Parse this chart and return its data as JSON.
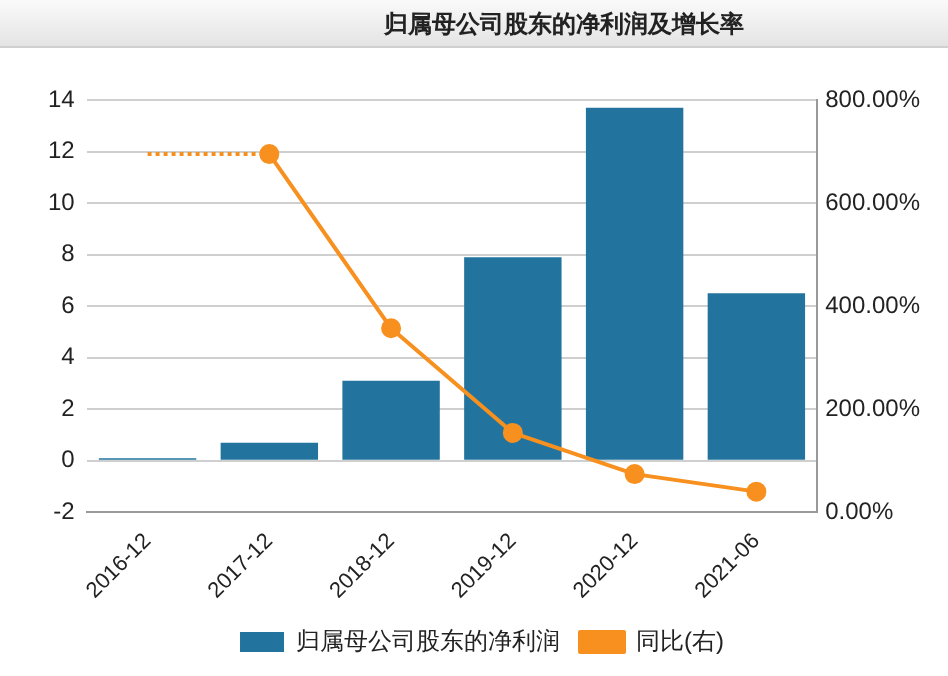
{
  "chart_data": {
    "type": "bar",
    "title": "归属母公司股东的净利润及增长率",
    "categories": [
      "2016-12",
      "2017-12",
      "2018-12",
      "2019-12",
      "2020-12",
      "2021-06"
    ],
    "series": [
      {
        "name": "归属母公司股东的净利润",
        "color": "#22749f",
        "values": [
          0.1,
          0.7,
          3.1,
          7.9,
          13.7,
          6.5
        ]
      },
      {
        "name": "同比(右)",
        "type": "line",
        "axis": "y2",
        "color": "#f7901e",
        "marker": "circle",
        "line_style": "solid",
        "values": [
          null,
          695,
          357,
          154,
          74,
          40
        ]
      },
      {
        "type": "line",
        "axis": "y2",
        "color": "#f7901e",
        "marker": "none",
        "line_style": "dotted",
        "values": [
          695,
          695,
          null,
          null,
          null,
          null
        ]
      }
    ],
    "ylim": [
      -2,
      14
    ],
    "yticks": [
      -2,
      0,
      2,
      4,
      6,
      8,
      10,
      12,
      14
    ],
    "y2lim": [
      0,
      800
    ],
    "y2ticks": [
      {
        "value": 0,
        "label": "0.00%"
      },
      {
        "value": 200,
        "label": "200.00%"
      },
      {
        "value": 400,
        "label": "400.00%"
      },
      {
        "value": 600,
        "label": "600.00%"
      },
      {
        "value": 800,
        "label": "800.00%"
      }
    ],
    "grid": "y",
    "legend": "bottom"
  }
}
